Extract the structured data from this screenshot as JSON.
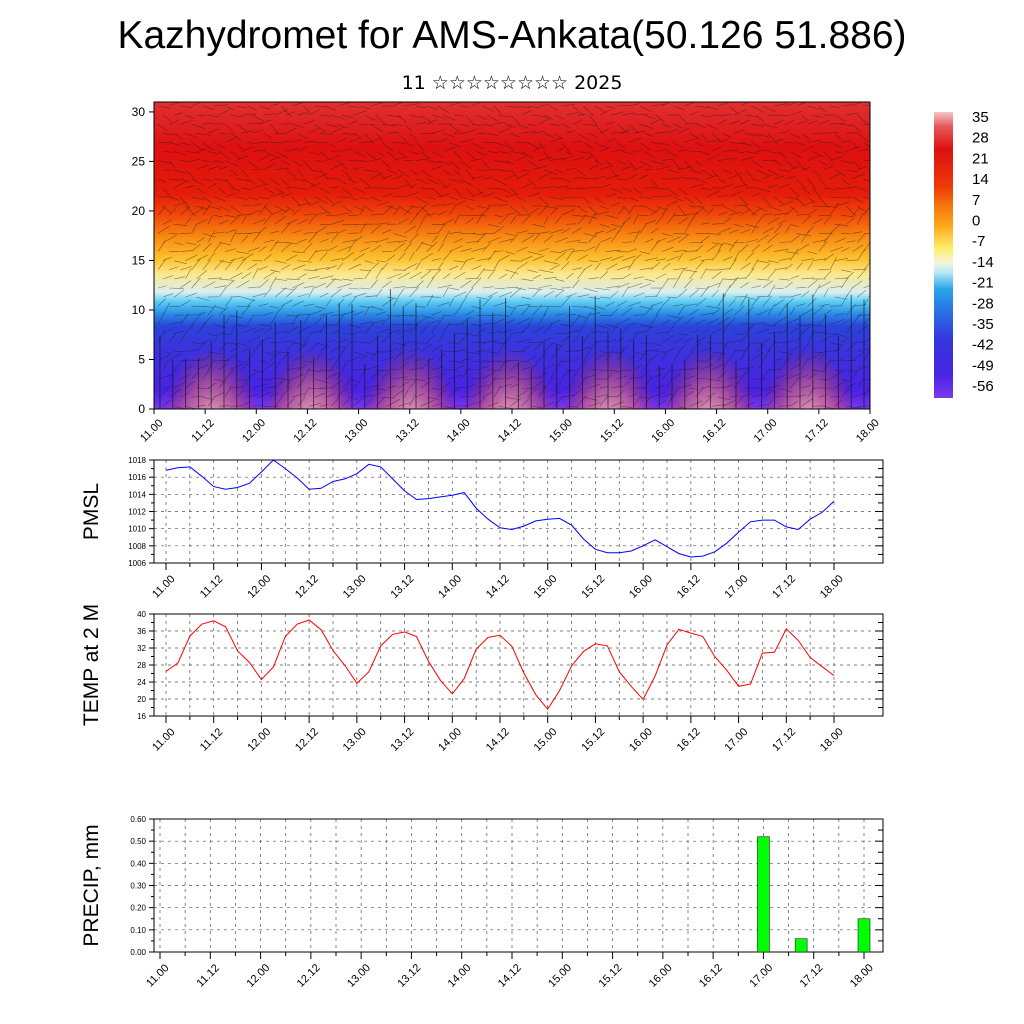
{
  "header": {
    "title": "Kazhydromet for AMS-Ankata(50.126 51.886)",
    "subtitle": "11 ☆☆☆☆☆☆☆☆ 2025"
  },
  "chart_data": [
    {
      "type": "heatmap",
      "ylim": [
        0,
        31
      ],
      "y_ticks": [
        "0",
        "5",
        "10",
        "15",
        "20",
        "25",
        "30"
      ],
      "x_ticks": [
        "11.00",
        "11.12",
        "12.00",
        "12.12",
        "13.00",
        "13.12",
        "14.00",
        "14.12",
        "15.00",
        "15.12",
        "16.00",
        "16.12",
        "17.00",
        "17.12",
        "18.00"
      ],
      "colorbar_labels": [
        "35",
        "28",
        "21",
        "14",
        "7",
        "0",
        "-7",
        "-14",
        "-21",
        "-28",
        "-35",
        "-42",
        "-49",
        "-56"
      ],
      "colors": [
        "#f2c4c4",
        "#e34b4b",
        "#e01010",
        "#ee3a08",
        "#f36d0a",
        "#fda51a",
        "#fff06a",
        "#f8f8d8",
        "#6fd4f0",
        "#1e9ae6",
        "#2a5fe0",
        "#3530dd",
        "#4a22e4",
        "#7a36ea"
      ]
    },
    {
      "type": "line",
      "ylabel": "PMSL",
      "ylim": [
        1006,
        1018
      ],
      "y_ticks": [
        "1006",
        "1008",
        "1010",
        "1012",
        "1014",
        "1016",
        "1018"
      ],
      "x_ticks": [
        "11.00",
        "11.12",
        "12.00",
        "12.12",
        "13.00",
        "13.12",
        "14.00",
        "14.12",
        "15.00",
        "15.12",
        "16.00",
        "16.12",
        "17.00",
        "17.12",
        "18.00"
      ],
      "color": "#0000ff",
      "x": [
        0,
        3,
        6,
        9,
        12,
        15,
        18,
        21,
        24,
        27,
        30,
        33,
        36,
        39,
        42,
        45,
        48,
        51,
        54,
        57,
        60,
        63,
        66,
        69,
        72,
        75,
        78,
        81,
        84,
        87,
        90,
        93,
        96,
        99,
        102,
        105,
        108,
        111,
        114,
        117,
        120,
        123,
        126,
        129,
        132,
        135,
        138,
        141,
        144,
        147,
        150,
        153,
        156,
        159,
        162,
        165,
        168
      ],
      "values": [
        1016.8,
        1017.1,
        1017.2,
        1016.1,
        1014.9,
        1014.6,
        1014.8,
        1015.3,
        1016.6,
        1018.0,
        1017.0,
        1015.9,
        1014.6,
        1014.7,
        1015.5,
        1015.8,
        1016.4,
        1017.5,
        1017.2,
        1015.8,
        1014.4,
        1013.4,
        1013.5,
        1013.7,
        1013.9,
        1014.2,
        1012.4,
        1011.1,
        1010.1,
        1009.9,
        1010.3,
        1010.9,
        1011.1,
        1011.2,
        1010.4,
        1008.8,
        1007.6,
        1007.2,
        1007.2,
        1007.4,
        1008.0,
        1008.7,
        1007.9,
        1007.1,
        1006.7,
        1006.8,
        1007.3,
        1008.3,
        1009.6,
        1010.8,
        1011.0,
        1011.0,
        1010.2,
        1009.9,
        1011.1,
        1011.9,
        1013.2
      ]
    },
    {
      "type": "line",
      "ylabel": "TEMP at 2 M",
      "ylim": [
        16,
        40
      ],
      "y_ticks": [
        "16",
        "20",
        "24",
        "28",
        "32",
        "36",
        "40"
      ],
      "x_ticks": [
        "11.00",
        "11.12",
        "12.00",
        "12.12",
        "13.00",
        "13.12",
        "14.00",
        "14.12",
        "15.00",
        "15.12",
        "16.00",
        "16.12",
        "17.00",
        "17.12",
        "18.00"
      ],
      "color": "#ff0000",
      "x": [
        0,
        3,
        6,
        9,
        12,
        15,
        18,
        21,
        24,
        27,
        30,
        33,
        36,
        39,
        42,
        45,
        48,
        51,
        54,
        57,
        60,
        63,
        66,
        69,
        72,
        75,
        78,
        81,
        84,
        87,
        90,
        93,
        96,
        99,
        102,
        105,
        108,
        111,
        114,
        117,
        120,
        123,
        126,
        129,
        132,
        135,
        138,
        141,
        144,
        147,
        150,
        153,
        156,
        159,
        162,
        165,
        168
      ],
      "values": [
        26.5,
        28.5,
        34.8,
        37.6,
        38.4,
        37.0,
        31.3,
        28.6,
        24.6,
        27.5,
        34.7,
        37.6,
        38.6,
        36.3,
        31.4,
        27.9,
        23.7,
        26.4,
        32.5,
        35.2,
        35.8,
        34.7,
        28.9,
        24.4,
        21.2,
        24.8,
        31.7,
        34.5,
        35.0,
        32.4,
        26.1,
        21.0,
        17.6,
        22.0,
        27.8,
        31.2,
        33.0,
        32.5,
        26.4,
        23.0,
        19.9,
        25.4,
        32.7,
        36.4,
        35.5,
        34.7,
        30.0,
        26.8,
        23.0,
        23.5,
        30.8,
        31.0,
        36.5,
        33.8,
        29.8,
        27.6,
        25.5
      ]
    },
    {
      "type": "bar",
      "ylabel": "PRECIP, mm",
      "ylim": [
        0,
        0.6
      ],
      "y_ticks": [
        "0.00",
        "0.10",
        "0.20",
        "0.30",
        "0.40",
        "0.50",
        "0.60"
      ],
      "x_ticks": [
        "11.00",
        "11.12",
        "12.00",
        "12.12",
        "13.00",
        "13.12",
        "14.00",
        "14.12",
        "15.00",
        "15.12",
        "16.00",
        "16.12",
        "17.00",
        "17.12",
        "18.00"
      ],
      "color": "#00ff00",
      "x": [
        144,
        153,
        168
      ],
      "values": [
        0.52,
        0.06,
        0.15
      ]
    }
  ]
}
